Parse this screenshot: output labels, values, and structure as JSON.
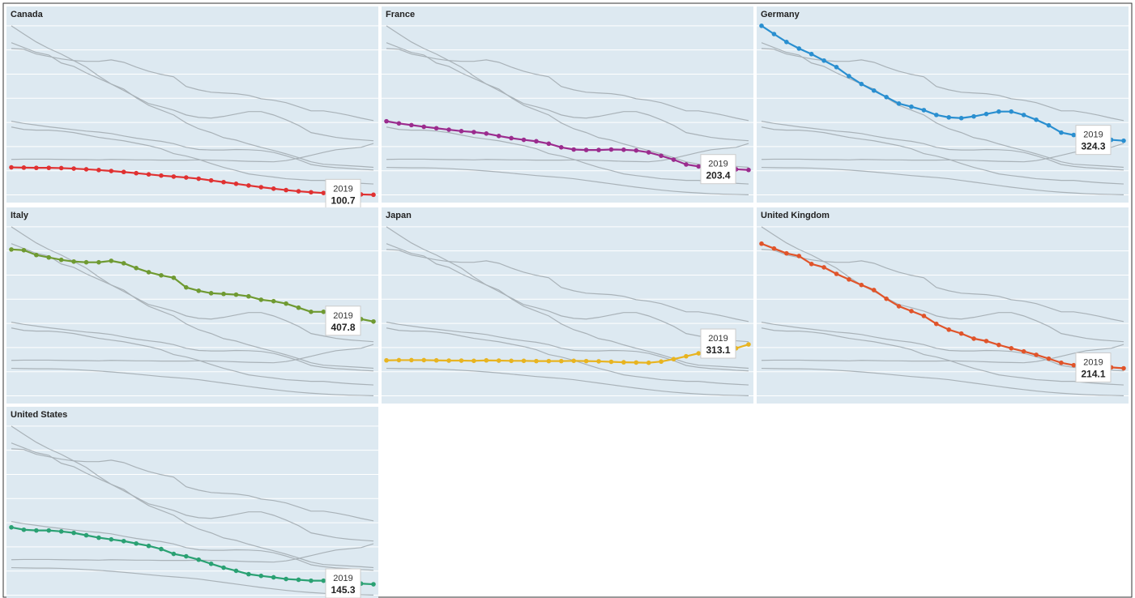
{
  "chart_data": {
    "type": "line",
    "categories": [
      null,
      null,
      null,
      null,
      null,
      null,
      null,
      null,
      null,
      null,
      null,
      null,
      null,
      null,
      null,
      null,
      null,
      null,
      null,
      null,
      null,
      null,
      null,
      null,
      null,
      null,
      null,
      null,
      null,
      "2019"
    ],
    "ylim": [
      75,
      880
    ],
    "yticks": [
      100,
      200,
      300,
      400,
      500,
      600,
      700,
      800
    ],
    "grid": true,
    "series": [
      {
        "name": "Canada",
        "color": "#e03131",
        "values": [
          214,
          213,
          212,
          212,
          211,
          209,
          206,
          203,
          199,
          195,
          190,
          185,
          180,
          176,
          172,
          167,
          160,
          153,
          146,
          139,
          132,
          126,
          120,
          115,
          111,
          108,
          105,
          103,
          102,
          100.7
        ]
      },
      {
        "name": "France",
        "color": "#9b2c8e",
        "values": [
          405,
          396,
          389,
          382,
          376,
          370,
          364,
          360,
          354,
          344,
          335,
          328,
          322,
          312,
          297,
          288,
          286,
          286,
          288,
          287,
          284,
          276,
          262,
          246,
          226,
          218,
          213,
          210,
          206,
          203.4
        ]
      },
      {
        "name": "Germany",
        "color": "#2a8fd0",
        "values": [
          800,
          766,
          733,
          706,
          683,
          656,
          629,
          592,
          559,
          532,
          505,
          478,
          465,
          451,
          431,
          421,
          418,
          425,
          435,
          445,
          445,
          431,
          411,
          388,
          358,
          348,
          338,
          332,
          328,
          324.3
        ]
      },
      {
        "name": "Italy",
        "color": "#6f9a32",
        "values": [
          706,
          703,
          683,
          673,
          663,
          656,
          653,
          653,
          659,
          649,
          629,
          612,
          599,
          589,
          549,
          535,
          525,
          522,
          519,
          512,
          498,
          492,
          482,
          465,
          448,
          448,
          440,
          430,
          418,
          407.8
        ]
      },
      {
        "name": "Japan",
        "color": "#e8b420",
        "values": [
          247,
          248,
          248,
          248,
          247,
          246,
          246,
          245,
          247,
          246,
          245,
          245,
          244,
          244,
          244,
          245,
          244,
          243,
          241,
          239,
          238,
          237,
          242,
          252,
          264,
          276,
          287,
          292,
          297,
          313.1
        ]
      },
      {
        "name": "United Kingdom",
        "color": "#e0542a",
        "values": [
          730,
          710,
          690,
          679,
          646,
          632,
          605,
          582,
          559,
          538,
          502,
          471,
          451,
          431,
          398,
          374,
          358,
          337,
          327,
          311,
          297,
          284,
          270,
          254,
          237,
          227,
          224,
          221,
          218,
          214.1
        ]
      },
      {
        "name": "United States",
        "color": "#2aa173",
        "values": [
          381,
          371,
          368,
          368,
          364,
          358,
          348,
          338,
          331,
          324,
          314,
          304,
          291,
          271,
          261,
          247,
          230,
          214,
          201,
          187,
          180,
          174,
          167,
          164,
          160,
          160,
          155,
          151,
          148,
          145.3
        ]
      }
    ]
  }
}
